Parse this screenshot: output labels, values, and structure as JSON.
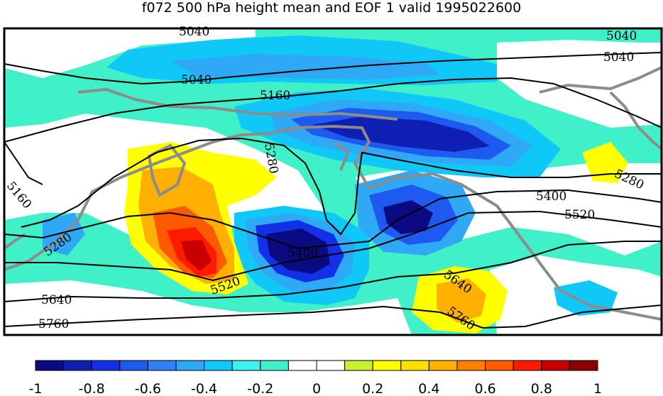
{
  "title": "f072 500 hPa height mean and EOF 1 valid 1995022600",
  "colorbar": {
    "colors": [
      "#0a0a82",
      "#0f1fb3",
      "#1430e6",
      "#1e5af0",
      "#2d82f5",
      "#2fa8f5",
      "#10c8f8",
      "#3ef0f0",
      "#40f0c8",
      "#ffffff",
      "#ffffff",
      "#c8f032",
      "#ffff00",
      "#ffdf00",
      "#ffb000",
      "#ff8000",
      "#ff5a00",
      "#ff1a00",
      "#c80000",
      "#8c0000"
    ],
    "tick_labels": [
      "-1",
      "-0.8",
      "-0.6",
      "-0.4",
      "-0.2",
      "0",
      "0.2",
      "0.4",
      "0.6",
      "0.8",
      "1"
    ]
  },
  "contour_labels": [
    "5040",
    "5040",
    "5040",
    "5040",
    "5160",
    "5160",
    "5280",
    "5280",
    "5280",
    "5400",
    "5400",
    "5520",
    "5520",
    "5640",
    "5640",
    "5760",
    "5760"
  ],
  "colors": {
    "coast": "#8c8c8c",
    "contour": "#000000",
    "frame": "#000000"
  }
}
